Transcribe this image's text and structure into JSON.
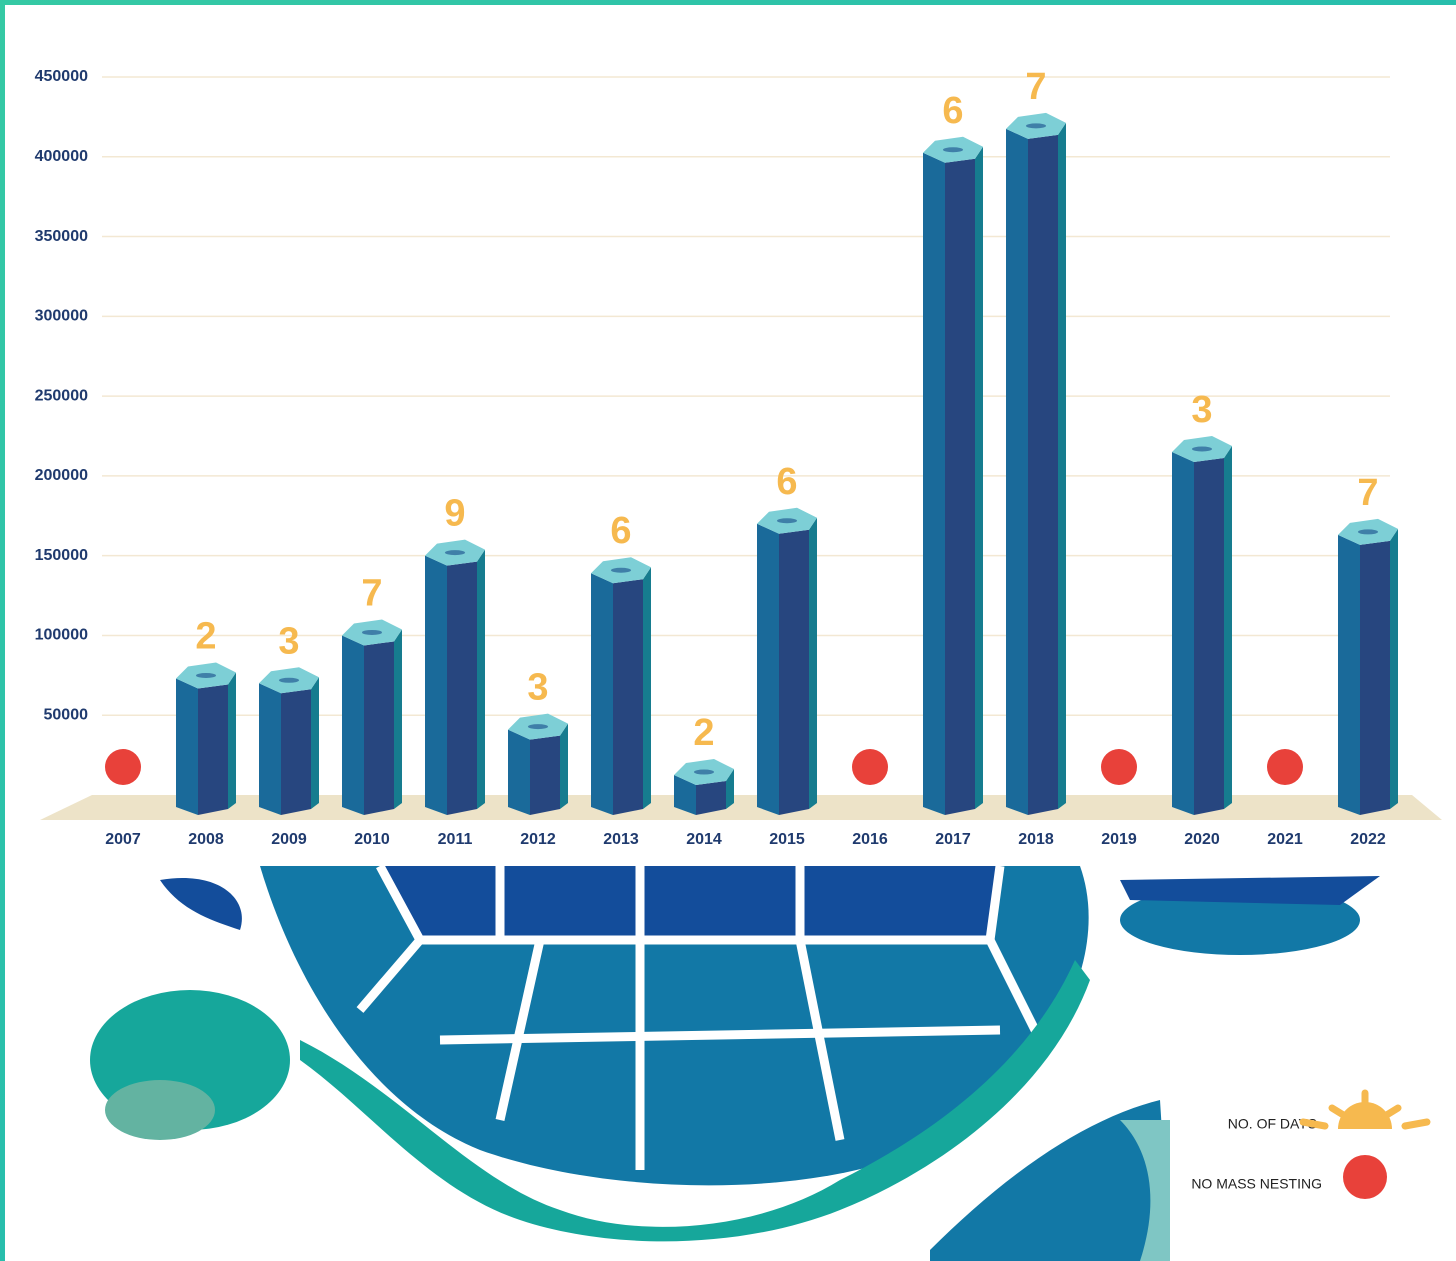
{
  "chart_data": {
    "type": "bar",
    "categories": [
      "2007",
      "2008",
      "2009",
      "2010",
      "2011",
      "2012",
      "2013",
      "2014",
      "2015",
      "2016",
      "2017",
      "2018",
      "2019",
      "2020",
      "2021",
      "2022"
    ],
    "values": [
      null,
      73000,
      70000,
      100000,
      150000,
      41000,
      139000,
      12500,
      170000,
      null,
      402500,
      417500,
      null,
      215000,
      null,
      163000
    ],
    "color": "#27467f",
    "ylim": [
      0,
      450000
    ],
    "yticks": [
      50000,
      100000,
      150000,
      200000,
      250000,
      300000,
      350000,
      400000,
      450000
    ],
    "grid": true,
    "days": {
      "name": "NO. OF DAYS",
      "color": "#f6b94f",
      "values": [
        null,
        2,
        3,
        7,
        9,
        3,
        6,
        2,
        6,
        null,
        6,
        7,
        null,
        3,
        null,
        7
      ]
    },
    "no_mass_nesting": {
      "name": "NO MASS NESTING",
      "color": "#e8413a"
    }
  }
}
